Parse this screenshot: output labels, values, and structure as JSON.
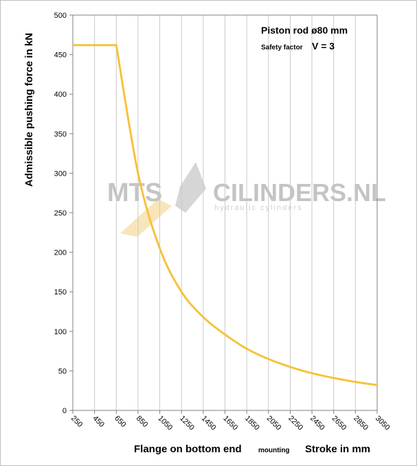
{
  "chart_data": {
    "type": "line",
    "x": [
      250,
      650,
      850,
      1050,
      1250,
      1450,
      1650,
      1850,
      2050,
      2250,
      2450,
      2650,
      2850,
      3050
    ],
    "series": [
      {
        "values": [
          462,
          462,
          300,
          205,
          150,
          118,
          96,
          78,
          65,
          55,
          47,
          41,
          36,
          32
        ]
      }
    ],
    "xticks": [
      250,
      450,
      650,
      850,
      1050,
      1250,
      1450,
      1650,
      1850,
      2050,
      2250,
      2450,
      2650,
      2850,
      3050
    ],
    "yticks": [
      0,
      50,
      100,
      150,
      200,
      250,
      300,
      350,
      400,
      450,
      500
    ],
    "xlim": [
      250,
      3050
    ],
    "ylim": [
      0,
      500
    ],
    "ylabel": "Admissible  pushing  force in  kN",
    "xlabel_main": "Flange on bottom end",
    "xlabel_small": "mounting",
    "xlabel_right": "Stroke in mm",
    "annotation_line1": "Piston rod ø80 mm",
    "annotation_small": "Safety factor",
    "annotation_value": "V = 3",
    "grid": {
      "vertical": true,
      "horizontal": false
    },
    "line_color": "#f5c33b"
  },
  "watermark": {
    "left": "MTS",
    "right": "CILINDERS.NL",
    "sub": "hydraulic  cylinders"
  }
}
